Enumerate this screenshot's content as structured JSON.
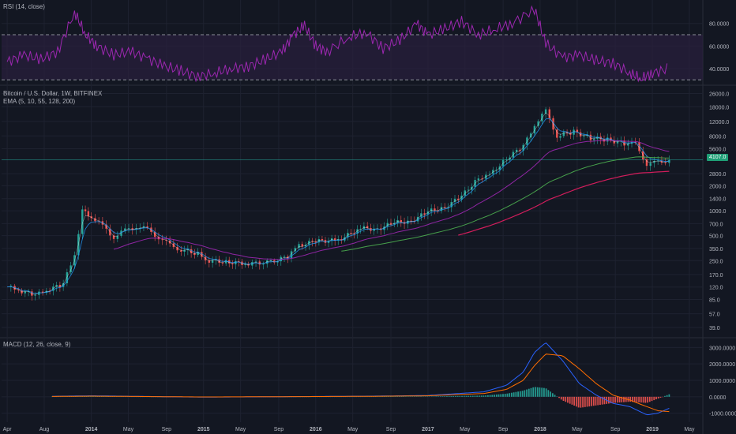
{
  "rsi_panel": {
    "label": "RSI (14, close)"
  },
  "price_panel": {
    "title": "Bitcoin / U.S. Dollar, 1W, BITFINEX",
    "ema_label": "EMA (5, 10, 55, 128, 200)",
    "last_price": "4107.0"
  },
  "macd_panel": {
    "label": "MACD (12, 26, close, 9)"
  },
  "colors": {
    "background": "#131722",
    "grid": "#1e2230",
    "up": "#26a69a",
    "down": "#ef5350",
    "rsi": "#9c27b0",
    "rsi_band": "#2a1f3d",
    "macd": "#2962ff",
    "signal": "#ff6d00",
    "hist_up": "#26a69a",
    "hist_down": "#ef5350"
  },
  "chart_data": [
    {
      "type": "line",
      "title": "RSI (14, close)",
      "y_ticks": [
        "80.0000",
        "60.0000",
        "40.0000"
      ],
      "ylim": [
        28,
        98
      ],
      "bands": [
        30,
        70
      ],
      "x_time": [
        2013.25,
        2013.4,
        2013.55,
        2013.7,
        2013.85,
        2013.95,
        2014.05,
        2014.2,
        2014.35,
        2014.5,
        2014.65,
        2014.8,
        2014.95,
        2015.1,
        2015.25,
        2015.4,
        2015.55,
        2015.7,
        2015.8,
        2015.9,
        2016.0,
        2016.1,
        2016.3,
        2016.45,
        2016.6,
        2016.75,
        2016.9,
        2017.0,
        2017.15,
        2017.3,
        2017.45,
        2017.6,
        2017.75,
        2017.95,
        2018.05,
        2018.2,
        2018.35,
        2018.5,
        2018.65,
        2018.8,
        2018.9,
        2019.0,
        2019.15
      ],
      "values": [
        46,
        52,
        48,
        55,
        90,
        70,
        60,
        52,
        55,
        49,
        42,
        38,
        33,
        36,
        40,
        42,
        48,
        55,
        70,
        78,
        60,
        55,
        68,
        72,
        58,
        65,
        80,
        70,
        75,
        82,
        70,
        75,
        80,
        93,
        62,
        50,
        52,
        47,
        45,
        36,
        31,
        36,
        40
      ]
    },
    {
      "type": "line",
      "title": "Bitcoin / U.S. Dollar, 1W, BITFINEX",
      "subtitle": "EMA (5, 10, 55, 128, 200)",
      "y_scale": "log",
      "y_ticks": [
        "26000.0",
        "18000.0",
        "12000.0",
        "8000.0",
        "5600.0",
        "4107.0",
        "2800.0",
        "2000.0",
        "1400.0",
        "1000.0",
        "700.0",
        "500.0",
        "350.0",
        "250.0",
        "170.0",
        "120.0",
        "85.0",
        "57.0",
        "39.0"
      ],
      "x_ticks": [
        "Apr",
        "Aug",
        "2014",
        "May",
        "Sep",
        "2015",
        "May",
        "Sep",
        "2016",
        "May",
        "Sep",
        "2017",
        "May",
        "Sep",
        "2018",
        "May",
        "Sep",
        "2019",
        "May"
      ],
      "x_time": [
        2013.25,
        2013.35,
        2013.5,
        2013.6,
        2013.75,
        2013.85,
        2013.92,
        2014.0,
        2014.1,
        2014.2,
        2014.3,
        2014.4,
        2014.5,
        2014.6,
        2014.7,
        2014.8,
        2014.95,
        2015.05,
        2015.2,
        2015.4,
        2015.6,
        2015.75,
        2015.85,
        2016.0,
        2016.2,
        2016.4,
        2016.55,
        2016.7,
        2016.85,
        2017.0,
        2017.15,
        2017.3,
        2017.45,
        2017.55,
        2017.7,
        2017.85,
        2017.95,
        2018.05,
        2018.15,
        2018.3,
        2018.45,
        2018.6,
        2018.75,
        2018.85,
        2018.95,
        2019.05,
        2019.15
      ],
      "close": [
        120,
        110,
        95,
        110,
        130,
        300,
        1000,
        850,
        650,
        480,
        580,
        650,
        590,
        480,
        380,
        340,
        300,
        250,
        240,
        230,
        240,
        280,
        380,
        430,
        440,
        620,
        600,
        720,
        750,
        980,
        1100,
        1500,
        2500,
        2700,
        4300,
        6000,
        11000,
        16000,
        8000,
        9000,
        7500,
        7200,
        6500,
        6300,
        3700,
        3800,
        4107
      ],
      "price_line": 4107
    },
    {
      "type": "bar",
      "title": "MACD (12, 26, close, 9)",
      "y_ticks": [
        "3000.0000",
        "2000.0000",
        "1000.0000",
        "0.0000",
        "-1000.0000"
      ],
      "ylim": [
        -1400,
        3400
      ],
      "x_time": [
        2013.3,
        2014.0,
        2015.0,
        2016.0,
        2016.5,
        2017.0,
        2017.5,
        2017.7,
        2017.85,
        2017.95,
        2018.05,
        2018.2,
        2018.35,
        2018.5,
        2018.65,
        2018.8,
        2018.95,
        2019.05,
        2019.15
      ],
      "macd": [
        0,
        60,
        -20,
        20,
        40,
        80,
        300,
        700,
        1500,
        2700,
        3300,
        2200,
        800,
        100,
        -400,
        -600,
        -1100,
        -1000,
        -700
      ],
      "signal": [
        0,
        40,
        -10,
        15,
        30,
        60,
        200,
        450,
        1000,
        1900,
        2600,
        2500,
        1700,
        800,
        100,
        -200,
        -600,
        -850,
        -900
      ]
    }
  ]
}
